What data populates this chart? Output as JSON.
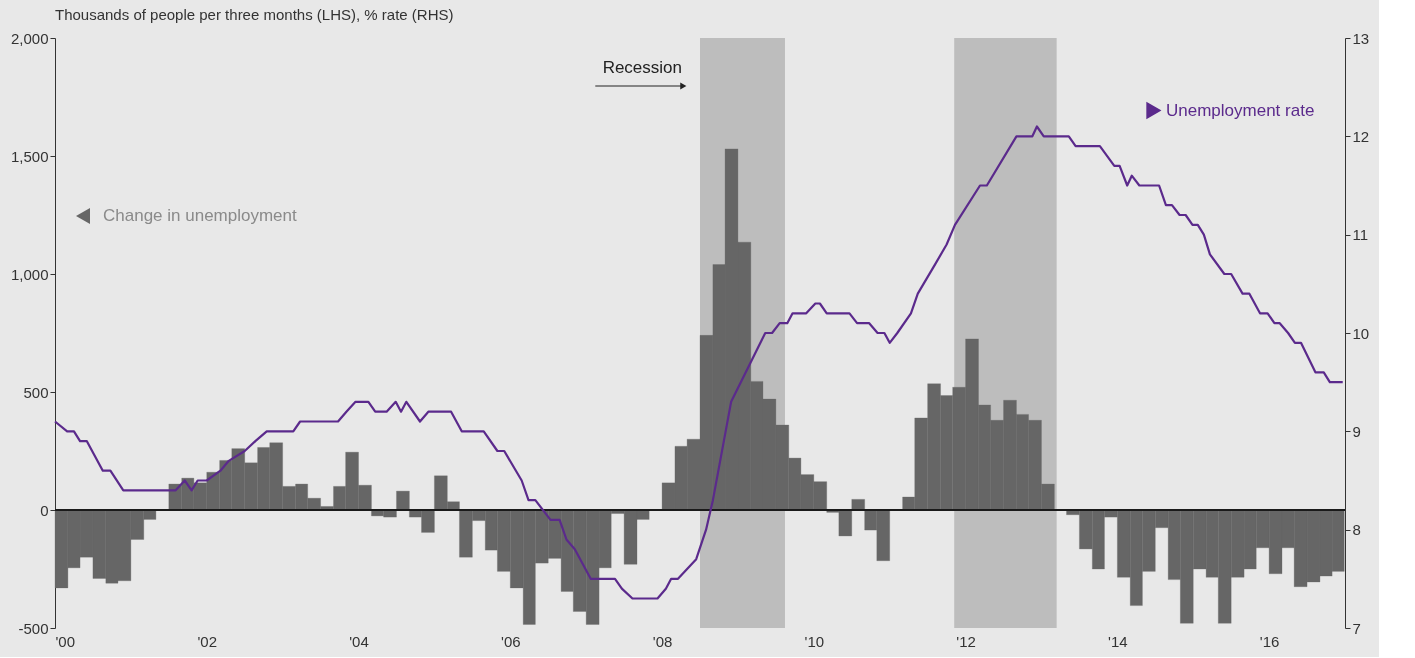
{
  "chart_data": {
    "type": "bar",
    "title": "Thousands of people per three months (LHS), % rate (RHS)",
    "xlim": [
      2000,
      2017
    ],
    "xticks": [
      {
        "value": 2000,
        "label": "'00"
      },
      {
        "value": 2002,
        "label": "'02"
      },
      {
        "value": 2004,
        "label": "'04"
      },
      {
        "value": 2006,
        "label": "'06"
      },
      {
        "value": 2008,
        "label": "'08"
      },
      {
        "value": 2010,
        "label": "'10"
      },
      {
        "value": 2012,
        "label": "'12"
      },
      {
        "value": 2014,
        "label": "'14"
      },
      {
        "value": 2016,
        "label": "'16"
      }
    ],
    "ylim": [
      -500,
      2000
    ],
    "yticks": [
      -500,
      0,
      500,
      {
        "value": 1000,
        "label": "1,000"
      },
      {
        "value": 1500,
        "label": "1,500"
      },
      {
        "value": 2000,
        "label": "2,000"
      }
    ],
    "y2lim": [
      7,
      13
    ],
    "y2ticks": [
      7,
      8,
      9,
      10,
      11,
      12,
      13
    ],
    "grid": false,
    "legend": "left",
    "series": [
      {
        "name": "Change in unemployment",
        "color": "#666666",
        "x": [
          2000,
          2000.17,
          2000.33,
          2000.5,
          2000.67,
          2000.83,
          2001,
          2001.17,
          2001.33,
          2001.5,
          2001.67,
          2001.83,
          2002,
          2002.17,
          2002.33,
          2002.5,
          2002.67,
          2002.83,
          2003,
          2003.17,
          2003.33,
          2003.5,
          2003.67,
          2003.83,
          2004,
          2004.17,
          2004.33,
          2004.5,
          2004.67,
          2004.83,
          2005,
          2005.17,
          2005.33,
          2005.5,
          2005.67,
          2005.83,
          2006,
          2006.17,
          2006.33,
          2006.5,
          2006.67,
          2006.83,
          2007,
          2007.17,
          2007.33,
          2007.5,
          2007.67,
          2007.83,
          2008,
          2008.17,
          2008.33,
          2008.5,
          2008.67,
          2008.83,
          2009,
          2009.17,
          2009.33,
          2009.5,
          2009.67,
          2009.83,
          2010,
          2010.17,
          2010.33,
          2010.5,
          2010.67,
          2010.83,
          2011,
          2011.17,
          2011.33,
          2011.5,
          2011.67,
          2011.83,
          2012,
          2012.17,
          2012.33,
          2012.5,
          2012.67,
          2012.83,
          2013,
          2013.17,
          2013.33,
          2013.5,
          2013.67,
          2013.83,
          2014,
          2014.17,
          2014.33,
          2014.5,
          2014.67,
          2014.83,
          2015,
          2015.17,
          2015.33,
          2015.5,
          2015.67,
          2015.83,
          2016,
          2016.17,
          2016.33,
          2016.5,
          2016.67,
          2016.83
        ],
        "values": [
          -330,
          -245,
          -200,
          -290,
          -310,
          -300,
          -125,
          -40,
          null,
          110,
          135,
          115,
          160,
          210,
          260,
          200,
          265,
          285,
          100,
          110,
          50,
          15,
          100,
          245,
          105,
          -25,
          -30,
          80,
          -30,
          -95,
          145,
          35,
          -200,
          -45,
          -170,
          -260,
          -330,
          -485,
          -225,
          -205,
          -345,
          -430,
          -485,
          -245,
          -15,
          -230,
          -40,
          null,
          115,
          270,
          300,
          740,
          1040,
          1530,
          1135,
          545,
          470,
          360,
          220,
          150,
          120,
          -10,
          -110,
          45,
          -85,
          -215,
          null,
          55,
          390,
          535,
          485,
          520,
          725,
          445,
          380,
          465,
          405,
          380,
          110,
          null,
          -20,
          -165,
          -250,
          -30,
          -285,
          -405,
          -260,
          -75,
          -295,
          -480,
          -250,
          -285,
          -480,
          -285,
          -250,
          -160,
          -270,
          -160,
          -325,
          -305,
          -280,
          -260
        ]
      },
      {
        "name": "Unemployment rate",
        "type": "line",
        "axis": "y2",
        "color": "#5b2a8c",
        "x": [
          2000.0,
          2000.16,
          2000.25,
          2000.33,
          2000.42,
          2000.63,
          2000.73,
          2000.9,
          2001.59,
          2001.71,
          2001.8,
          2001.88,
          2002.0,
          2002.18,
          2002.29,
          2002.5,
          2002.64,
          2002.79,
          2003.14,
          2003.23,
          2003.73,
          2003.84,
          2003.96,
          2004.13,
          2004.22,
          2004.37,
          2004.49,
          2004.56,
          2004.63,
          2004.81,
          2004.92,
          2005.22,
          2005.36,
          2005.65,
          2005.83,
          2005.92,
          2006.15,
          2006.24,
          2006.33,
          2006.53,
          2006.65,
          2006.74,
          2006.85,
          2007.06,
          2007.38,
          2007.47,
          2007.61,
          2007.94,
          2008.05,
          2008.12,
          2008.21,
          2008.45,
          2008.58,
          2008.67,
          2008.91,
          2009.36,
          2009.45,
          2009.55,
          2009.65,
          2009.72,
          2009.9,
          2010.02,
          2010.08,
          2010.17,
          2010.47,
          2010.57,
          2010.73,
          2010.84,
          2010.93,
          2011.0,
          2011.1,
          2011.28,
          2011.37,
          2011.6,
          2011.75,
          2011.86,
          2012.19,
          2012.28,
          2012.67,
          2012.88,
          2012.94,
          2013.03,
          2013.36,
          2013.45,
          2013.77,
          2013.96,
          2014.03,
          2014.13,
          2014.19,
          2014.29,
          2014.55,
          2014.64,
          2014.72,
          2014.82,
          2014.9,
          2014.99,
          2015.06,
          2015.14,
          2015.22,
          2015.41,
          2015.5,
          2015.65,
          2015.74,
          2015.88,
          2015.98,
          2016.07,
          2016.14,
          2016.25,
          2016.34,
          2016.42,
          2016.61,
          2016.72,
          2016.8,
          2016.97
        ],
        "values": [
          9.1,
          9.0,
          9.0,
          8.9,
          8.9,
          8.6,
          8.6,
          8.4,
          8.4,
          8.5,
          8.4,
          8.5,
          8.5,
          8.6,
          8.7,
          8.8,
          8.9,
          9.0,
          9.0,
          9.1,
          9.1,
          9.2,
          9.3,
          9.3,
          9.2,
          9.2,
          9.3,
          9.2,
          9.3,
          9.1,
          9.2,
          9.2,
          9.0,
          9.0,
          8.8,
          8.8,
          8.5,
          8.3,
          8.3,
          8.1,
          8.1,
          7.9,
          7.8,
          7.5,
          7.5,
          7.4,
          7.3,
          7.3,
          7.4,
          7.5,
          7.5,
          7.7,
          8.0,
          8.3,
          9.3,
          10.0,
          10.0,
          10.1,
          10.1,
          10.2,
          10.2,
          10.3,
          10.3,
          10.2,
          10.2,
          10.1,
          10.1,
          10.0,
          10.0,
          9.9,
          10.0,
          10.2,
          10.4,
          10.7,
          10.9,
          11.1,
          11.5,
          11.5,
          12.0,
          12.0,
          12.1,
          12.0,
          12.0,
          11.9,
          11.9,
          11.7,
          11.7,
          11.5,
          11.6,
          11.5,
          11.5,
          11.3,
          11.3,
          11.2,
          11.2,
          11.1,
          11.1,
          11.0,
          10.8,
          10.6,
          10.6,
          10.4,
          10.4,
          10.2,
          10.2,
          10.1,
          10.1,
          10.0,
          9.9,
          9.9,
          9.6,
          9.6,
          9.5,
          9.5
        ]
      }
    ],
    "bands": [
      {
        "axis": "x",
        "from": 2008.5,
        "to": 2009.62,
        "label": "Recession",
        "color": "#bdbdbd"
      },
      {
        "axis": "x",
        "from": 2011.85,
        "to": 2013.2,
        "color": "#bdbdbd"
      }
    ],
    "ref_lines": [
      {
        "axis": "y",
        "value": 0,
        "color": "#1a1a1a"
      }
    ]
  }
}
